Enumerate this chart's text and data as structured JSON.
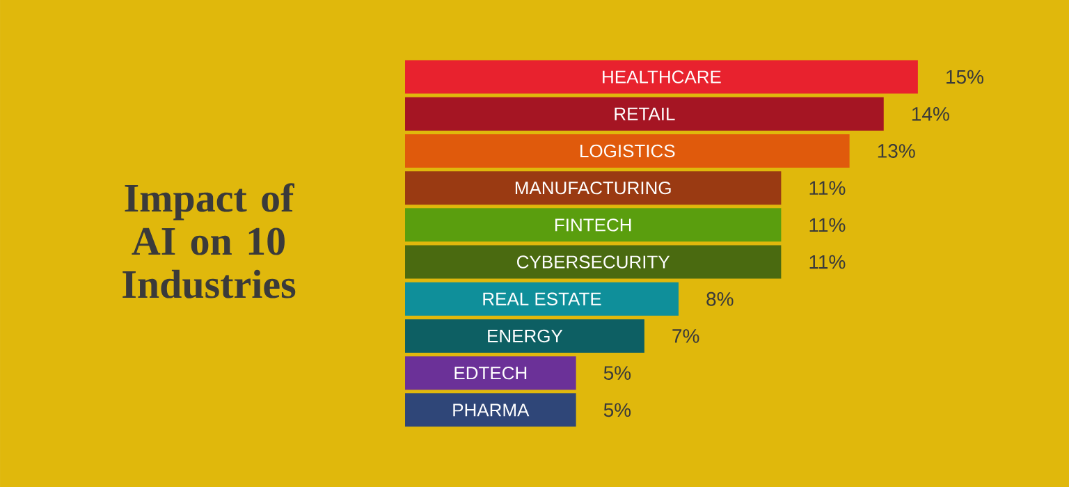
{
  "chart_data": {
    "type": "bar",
    "orientation": "horizontal",
    "title": "Impact of AI on 10 Industries",
    "categories": [
      "HEALTHCARE",
      "RETAIL",
      "LOGISTICS",
      "MANUFACTURING",
      "FINTECH",
      "CYBERSECURITY",
      "REAL ESTATE",
      "ENERGY",
      "EDTECH",
      "PHARMA"
    ],
    "values": [
      15,
      14,
      13,
      11,
      11,
      11,
      8,
      7,
      5,
      5
    ],
    "colors": [
      "#e8222e",
      "#a51523",
      "#e05a0c",
      "#9a3a12",
      "#5a9e0e",
      "#4a6a10",
      "#0f8f9a",
      "#0d5f63",
      "#6b3198",
      "#2f4678"
    ],
    "value_labels": [
      "15%",
      "14%",
      "13%",
      "11%",
      "11%",
      "11%",
      "8%",
      "7%",
      "5%",
      "5%"
    ]
  }
}
